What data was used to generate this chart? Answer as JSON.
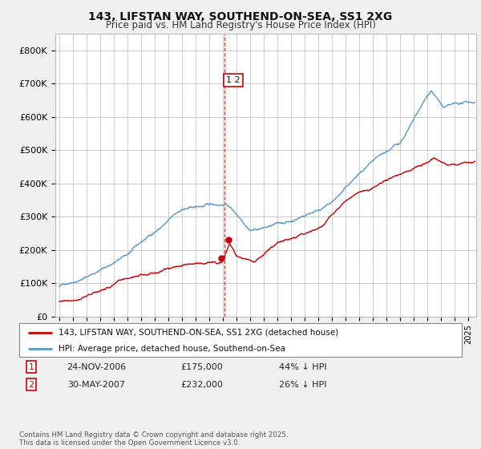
{
  "title_line1": "143, LIFSTAN WAY, SOUTHEND-ON-SEA, SS1 2XG",
  "title_line2": "Price paid vs. HM Land Registry's House Price Index (HPI)",
  "ylim": [
    0,
    850000
  ],
  "yticks": [
    0,
    100000,
    200000,
    300000,
    400000,
    500000,
    600000,
    700000,
    800000
  ],
  "ytick_labels": [
    "£0",
    "£100K",
    "£200K",
    "£300K",
    "£400K",
    "£500K",
    "£600K",
    "£700K",
    "£800K"
  ],
  "hpi_color": "#5599cc",
  "price_color": "#cc0000",
  "transaction1_x": 2006.9,
  "transaction1_price": 175000,
  "transaction2_x": 2007.42,
  "transaction2_price": 232000,
  "vline_x": 2007.1,
  "legend_entry1": "143, LIFSTAN WAY, SOUTHEND-ON-SEA, SS1 2XG (detached house)",
  "legend_entry2": "HPI: Average price, detached house, Southend-on-Sea",
  "table_row1": [
    "1",
    "24-NOV-2006",
    "£175,000",
    "44% ↓ HPI"
  ],
  "table_row2": [
    "2",
    "30-MAY-2007",
    "£232,000",
    "26% ↓ HPI"
  ],
  "footnote": "Contains HM Land Registry data © Crown copyright and database right 2025.\nThis data is licensed under the Open Government Licence v3.0.",
  "bg_color": "#f0f0f0",
  "plot_bg_color": "#ffffff",
  "grid_color": "#cccccc",
  "xlim_left": 1994.7,
  "xlim_right": 2025.6
}
